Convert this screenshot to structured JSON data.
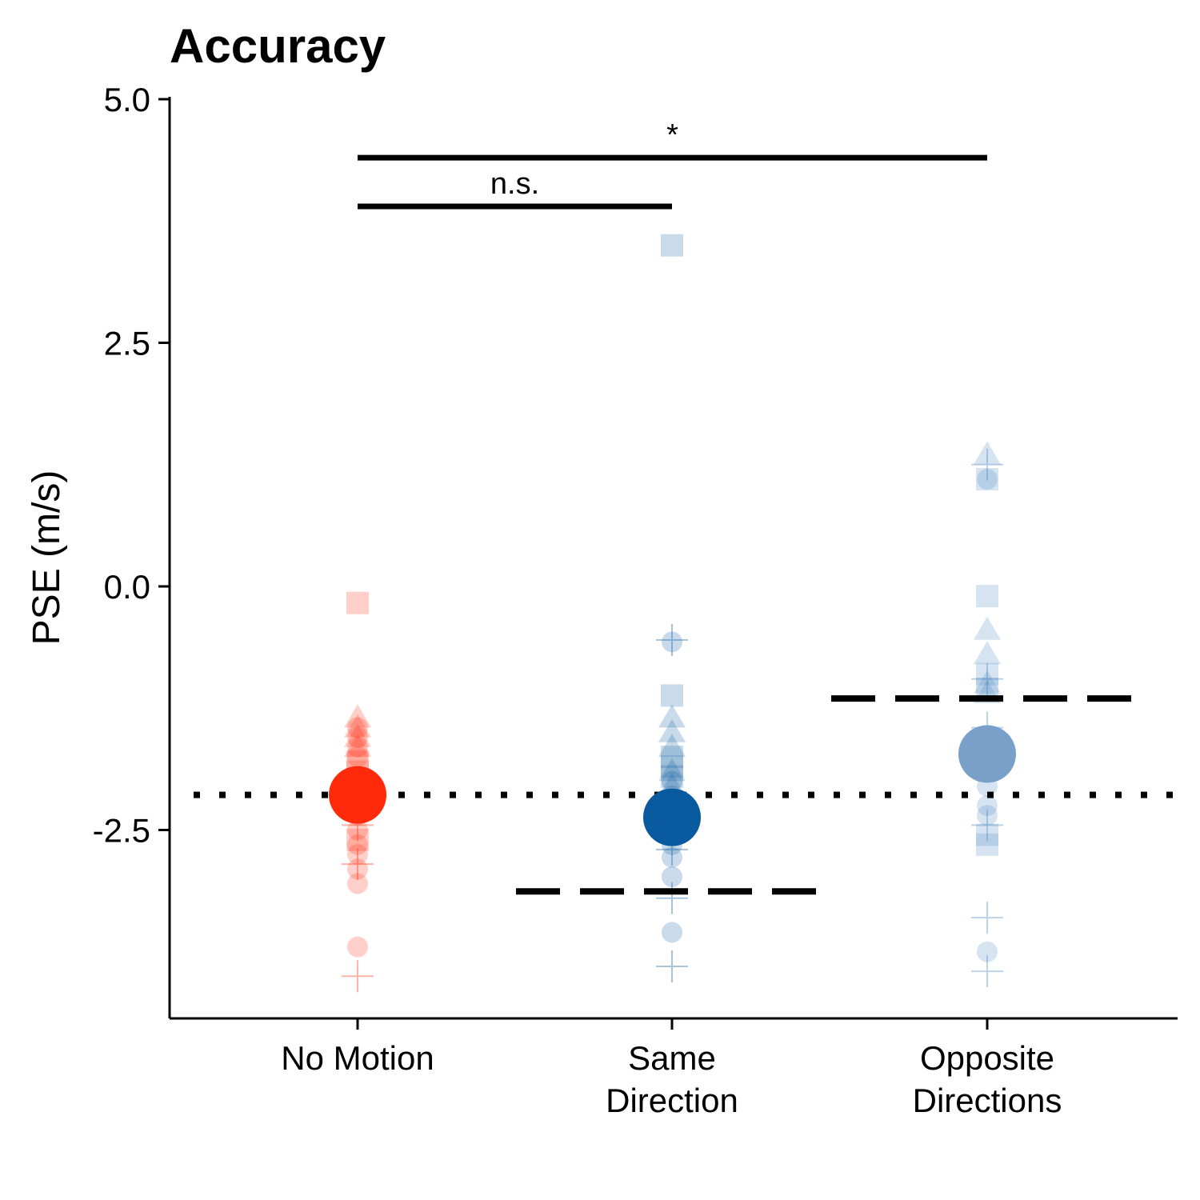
{
  "chart_data": {
    "type": "scatter",
    "title": "Accuracy",
    "xlabel": "",
    "ylabel": "PSE (m/s)",
    "ylim": [
      -4.4,
      5.0
    ],
    "yticks": [
      5.0,
      2.5,
      0.0,
      -2.5
    ],
    "ytick_labels": [
      "5.0",
      "2.5",
      "0.0",
      "-2.5"
    ],
    "categories": [
      [
        "No Motion"
      ],
      [
        "Same",
        "Direction"
      ],
      [
        "Opposite",
        "Directions"
      ]
    ],
    "grid": false,
    "reference_line": {
      "style": "dotted",
      "value": -2.14
    },
    "condition_reference_lines": [
      {
        "style": "dashed",
        "category_index": 1,
        "value": -3.13
      },
      {
        "style": "dashed",
        "category_index": 2,
        "value": -1.15
      }
    ],
    "series": [
      {
        "category_index": 0,
        "color": "#FF2A0A",
        "mean": -2.14,
        "points": [
          {
            "shape": "square",
            "y": -0.17
          },
          {
            "shape": "triangle",
            "y": -1.35
          },
          {
            "shape": "triangle",
            "y": -1.45
          },
          {
            "shape": "triangle",
            "y": -1.55
          },
          {
            "shape": "triangle",
            "y": -1.65
          },
          {
            "shape": "circle",
            "y": -1.45
          },
          {
            "shape": "circle",
            "y": -1.55
          },
          {
            "shape": "circle",
            "y": -1.65
          },
          {
            "shape": "circle",
            "y": -1.75
          },
          {
            "shape": "square",
            "y": -1.8
          },
          {
            "shape": "square",
            "y": -1.9
          },
          {
            "shape": "triangle",
            "y": -2.0
          },
          {
            "shape": "circle",
            "y": -2.35
          },
          {
            "shape": "circle",
            "y": -2.5
          },
          {
            "shape": "circle",
            "y": -2.65
          },
          {
            "shape": "circle",
            "y": -2.75
          },
          {
            "shape": "square",
            "y": -2.6
          },
          {
            "shape": "cross",
            "y": -2.45
          },
          {
            "shape": "cross",
            "y": -2.85
          },
          {
            "shape": "circle",
            "y": -2.9
          },
          {
            "shape": "circle",
            "y": -3.05
          },
          {
            "shape": "circle",
            "y": -3.7
          },
          {
            "shape": "cross",
            "y": -4.0
          }
        ]
      },
      {
        "category_index": 1,
        "color": "#0A5AA0",
        "mean": -2.37,
        "points": [
          {
            "shape": "square",
            "y": 3.5
          },
          {
            "shape": "cross",
            "y": -0.55
          },
          {
            "shape": "circle",
            "y": -0.57
          },
          {
            "shape": "square",
            "y": -1.12
          },
          {
            "shape": "triangle",
            "y": -1.35
          },
          {
            "shape": "triangle",
            "y": -1.5
          },
          {
            "shape": "triangle",
            "y": -1.65
          },
          {
            "shape": "square",
            "y": -1.75
          },
          {
            "shape": "square",
            "y": -1.85
          },
          {
            "shape": "triangle",
            "y": -1.9
          },
          {
            "shape": "square",
            "y": -1.95
          },
          {
            "shape": "circle",
            "y": -2.0
          },
          {
            "shape": "triangle",
            "y": -2.05
          },
          {
            "shape": "circle",
            "y": -2.15
          },
          {
            "shape": "circle",
            "y": -2.55
          },
          {
            "shape": "circle",
            "y": -2.65
          },
          {
            "shape": "cross",
            "y": -2.7
          },
          {
            "shape": "circle",
            "y": -2.78
          },
          {
            "shape": "circle",
            "y": -2.98
          },
          {
            "shape": "cross",
            "y": -3.2
          },
          {
            "shape": "circle",
            "y": -3.55
          },
          {
            "shape": "cross",
            "y": -3.9
          }
        ]
      },
      {
        "category_index": 2,
        "color": "#4682BE",
        "mean": -1.72,
        "points": [
          {
            "shape": "triangle",
            "y": 1.35
          },
          {
            "shape": "cross",
            "y": 1.25
          },
          {
            "shape": "square",
            "y": 1.1
          },
          {
            "shape": "circle",
            "y": 1.1
          },
          {
            "shape": "square",
            "y": -0.1
          },
          {
            "shape": "triangle",
            "y": -0.45
          },
          {
            "shape": "triangle",
            "y": -0.7
          },
          {
            "shape": "square",
            "y": -0.9
          },
          {
            "shape": "cross",
            "y": -0.95
          },
          {
            "shape": "triangle",
            "y": -1.0
          },
          {
            "shape": "square",
            "y": -1.05
          },
          {
            "shape": "triangle",
            "y": -1.1
          },
          {
            "shape": "cross",
            "y": -1.45
          },
          {
            "shape": "circle",
            "y": -1.6
          },
          {
            "shape": "circle",
            "y": -1.9
          },
          {
            "shape": "circle",
            "y": -2.05
          },
          {
            "shape": "circle",
            "y": -2.25
          },
          {
            "shape": "circle",
            "y": -2.35
          },
          {
            "shape": "cross",
            "y": -2.45
          },
          {
            "shape": "square",
            "y": -2.55
          },
          {
            "shape": "square",
            "y": -2.65
          },
          {
            "shape": "cross",
            "y": -3.4
          },
          {
            "shape": "circle",
            "y": -3.75
          },
          {
            "shape": "cross",
            "y": -3.95
          }
        ]
      }
    ],
    "mean_colors": [
      "#FF2A0A",
      "#0A5AA0",
      "#78A0C8"
    ],
    "significance": [
      {
        "from_index": 0,
        "to_index": 2,
        "y": 4.4,
        "label": "*"
      },
      {
        "from_index": 0,
        "to_index": 1,
        "y": 3.9,
        "label": "n.s."
      }
    ]
  }
}
